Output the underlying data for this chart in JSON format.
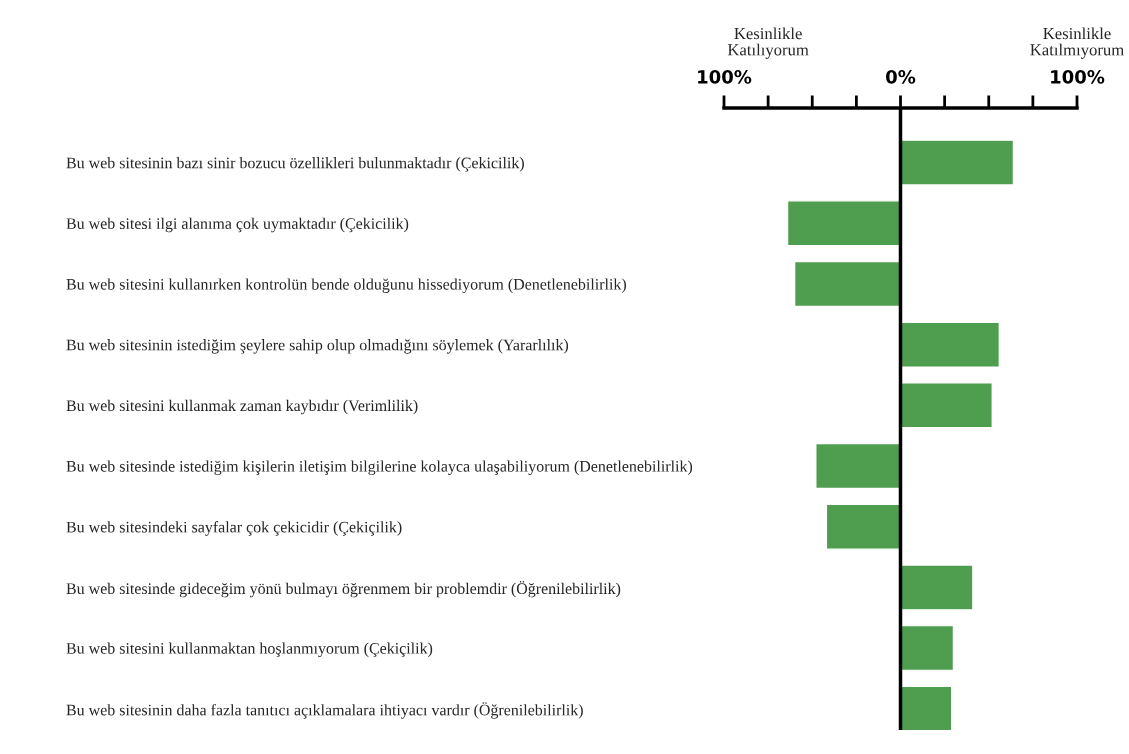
{
  "chart_data": {
    "type": "bar",
    "orientation": "horizontal",
    "categories": [
      "Bu web sitesinin bazı sinir bozucu özellikleri bulunmaktadır (Çekicilik)",
      "Bu web sitesi ilgi alanıma çok uymaktadır (Çekicilik)",
      "Bu web sitesini kullanırken kontrolün bende olduğunu hissediyorum (Denetlenebilirlik)",
      "Bu web sitesinin istediğim şeylere sahip olup olmadığını söylemek (Yararlılık)",
      "Bu web sitesini kullanmak zaman kaybıdır (Verimlilik)",
      "Bu web sitesinde istediğim kişilerin iletişim bilgilerine kolayca ulaşabiliyorum (Denetlenebilirlik)",
      "Bu web sitesindeki sayfalar çok çekicidir (Çekiçilik)",
      "Bu web sitesinde gideceğim yönü bulmayı öğrenmem bir problemdir (Öğrenilebilirlik)",
      "Bu web sitesini kullanmaktan hoşlanmıyorum (Çekiçilik)",
      "Bu web sitesinin daha fazla tanıtıcı açıklamalara ihtiyacı vardır (Öğrenilebilirlik)"
    ],
    "values": [
      64,
      -64,
      -60,
      56,
      52,
      -48,
      -42,
      41,
      30,
      29
    ],
    "color": "#4f9e4f",
    "xlim": [
      -100,
      100
    ],
    "xticks": [
      {
        "value": -100,
        "label": "100%"
      },
      {
        "value": -75,
        "label": null
      },
      {
        "value": -50,
        "label": null
      },
      {
        "value": -25,
        "label": null
      },
      {
        "value": 0,
        "label": "0%"
      },
      {
        "value": 25,
        "label": null
      },
      {
        "value": 50,
        "label": null
      },
      {
        "value": 75,
        "label": null
      },
      {
        "value": 100,
        "label": "100%"
      }
    ],
    "annotations": [
      "Kesinlikle\nKatılıyorum",
      "Kesinlikle\nKatılmıyorum"
    ],
    "ref_lines": [
      {
        "axis": "x",
        "value": 0,
        "color": "#000000",
        "line_style": "solid"
      }
    ],
    "grid": false,
    "legend": false
  }
}
